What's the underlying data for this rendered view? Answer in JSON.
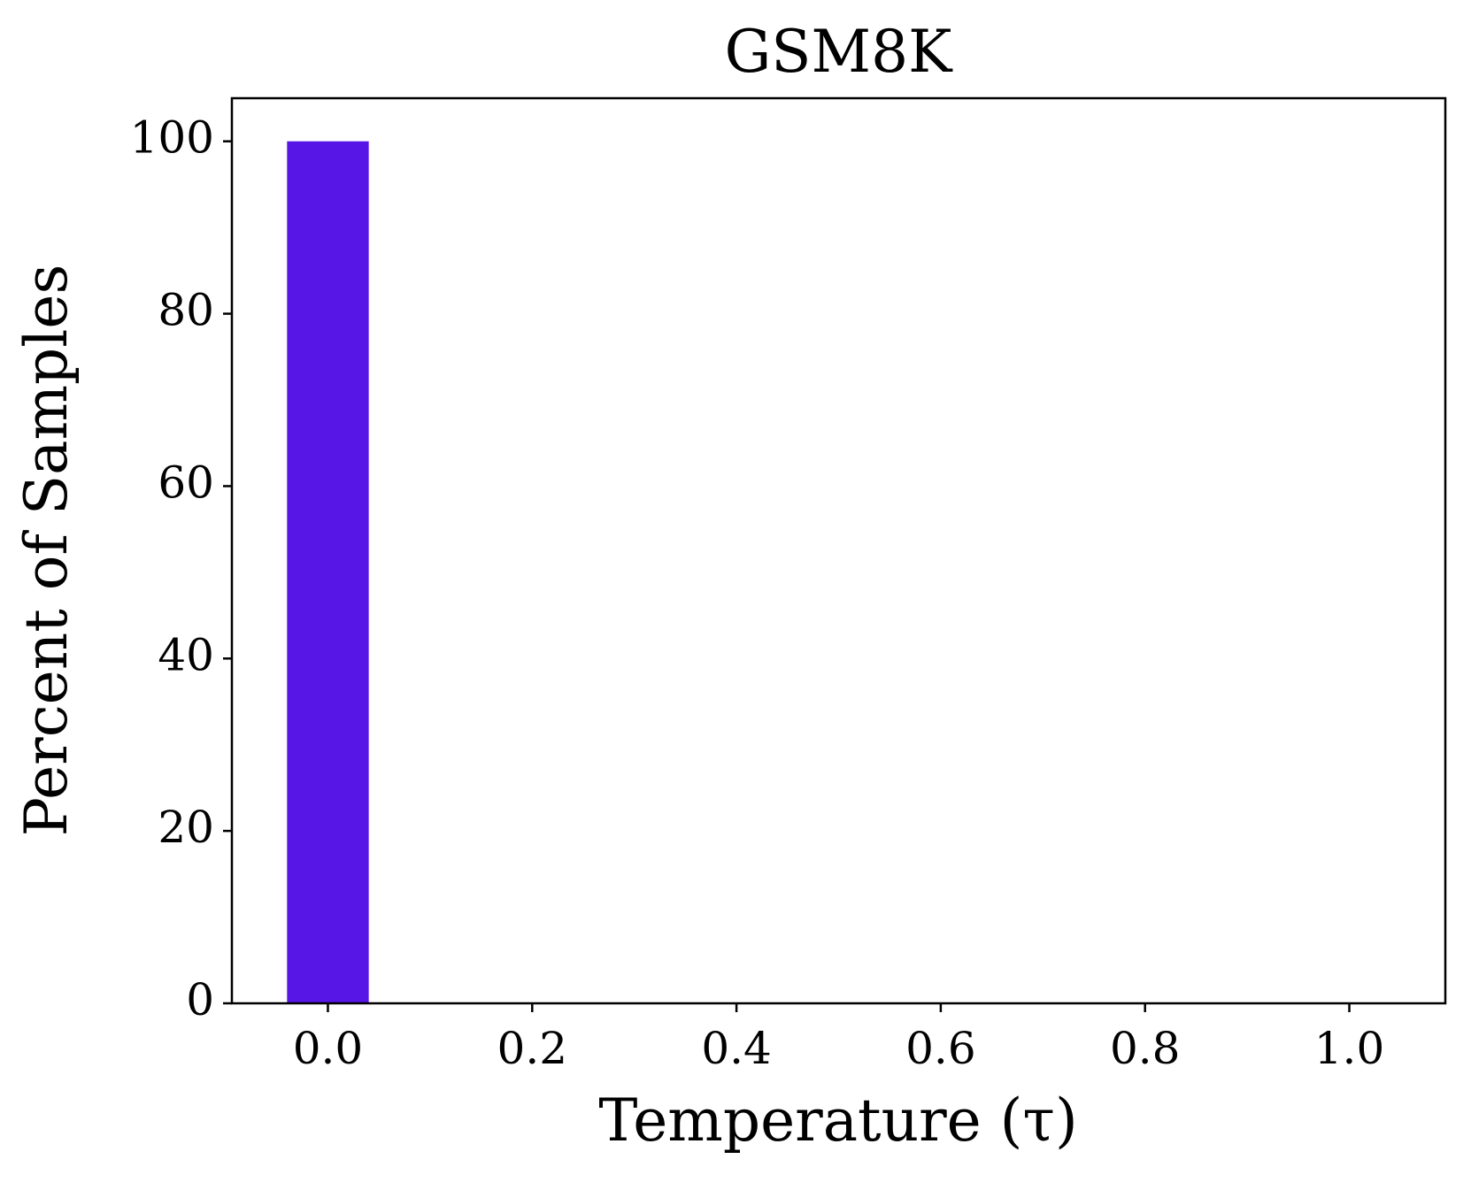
{
  "chart_data": {
    "type": "histogram",
    "title": "GSM8K",
    "x_label": "Temperature (τ)",
    "y_label": "Percent of Samples",
    "bins": [
      -0.04,
      0.04
    ],
    "values": [
      100
    ],
    "color": "#5716e6",
    "xlim": [
      -0.094,
      1.094
    ],
    "xticks": [
      {
        "value": 0,
        "label": "0.0"
      },
      0.2,
      0.4,
      0.6,
      0.8,
      {
        "value": 1,
        "label": "1.0"
      }
    ],
    "ylim": [
      0,
      105
    ],
    "yticks": [
      0,
      20,
      40,
      60,
      80,
      100
    ],
    "grid": false
  }
}
